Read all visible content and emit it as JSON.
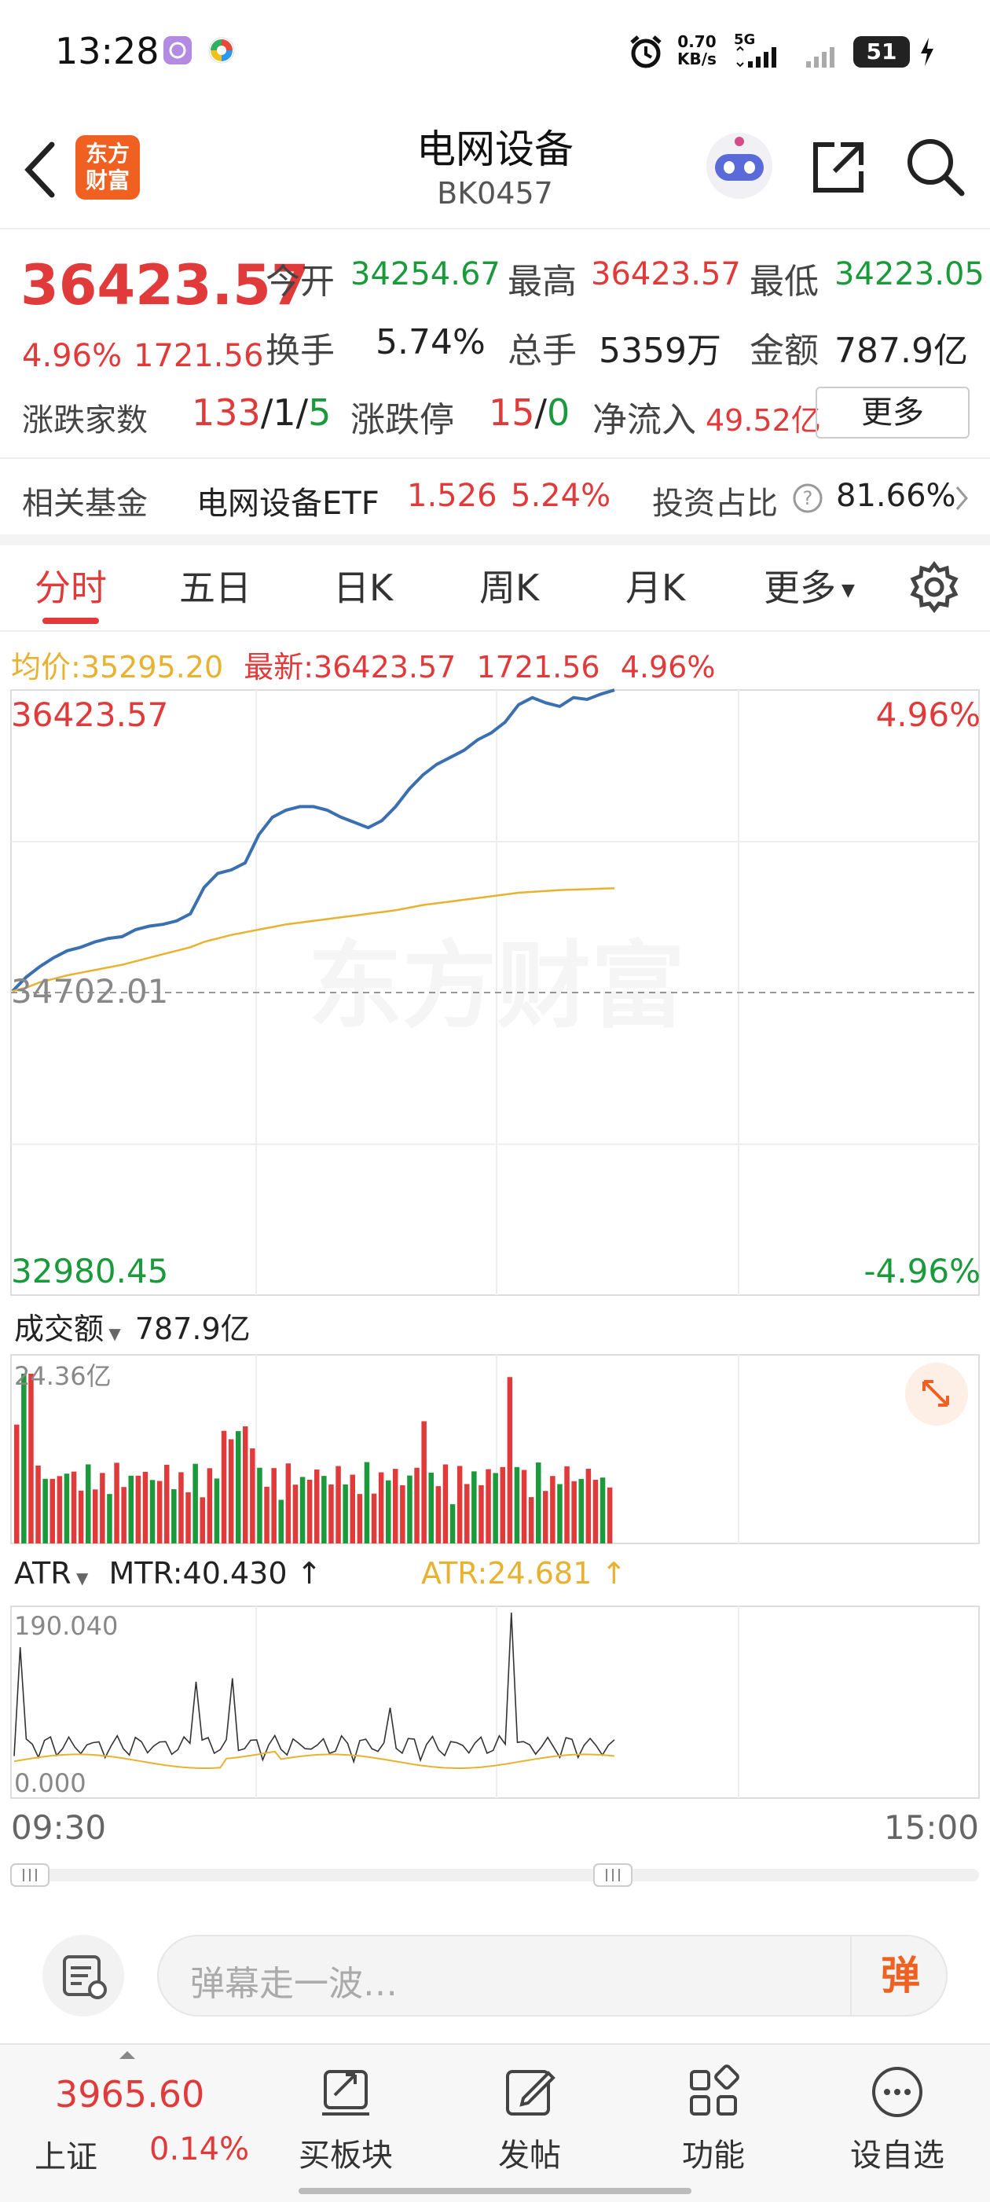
{
  "status_bar": {
    "time": "13:28",
    "net_speed_value": "0.70",
    "net_speed_unit": "KB/s",
    "network_type": "5G",
    "battery": "51"
  },
  "header": {
    "title": "电网设备",
    "code": "BK0457",
    "logo_text_line1": "东方",
    "logo_text_line2": "财富"
  },
  "quote": {
    "price": "36423.57",
    "change_pct": "4.96%",
    "change_amt": "1721.56",
    "open_label": "今开",
    "open_value": "34254.67",
    "high_label": "最高",
    "high_value": "36423.57",
    "low_label": "最低",
    "low_value": "34223.05",
    "turnover_label": "换手",
    "turnover_value": "5.74%",
    "volume_label": "总手",
    "volume_value": "5359万",
    "amount_label": "金额",
    "amount_value": "787.9亿",
    "breadth_label": "涨跌家数",
    "breadth_up": "133",
    "breadth_flat": "1",
    "breadth_down": "5",
    "limit_label": "涨跌停",
    "limit_up": "15",
    "limit_down": "0",
    "netflow_label": "净流入",
    "netflow_value": "49.52亿",
    "more_button": "更多"
  },
  "fund": {
    "label": "相关基金",
    "name": "电网设备ETF",
    "price": "1.526",
    "change": "5.24%",
    "ratio_label": "投资占比",
    "ratio_value": "81.66%"
  },
  "tabs": [
    "分时",
    "五日",
    "日K",
    "周K",
    "月K",
    "更多"
  ],
  "chart_info": {
    "avg_label": "均价:",
    "avg_value": "35295.20",
    "latest_label": "最新:",
    "latest_value": "36423.57",
    "latest_change": "1721.56",
    "latest_pct": "4.96%",
    "top_price": "36423.57",
    "top_pct": "4.96%",
    "mid_price": "34702.01",
    "bottom_price": "32980.45",
    "bottom_pct": "-4.96%",
    "watermark": "东方财富",
    "time_start": "09:30",
    "time_end": "15:00"
  },
  "volume_panel": {
    "selector_label": "成交额",
    "amount": "787.9亿",
    "max_label": "24.36亿"
  },
  "atr_panel": {
    "selector_label": "ATR",
    "mtr_text": "MTR:40.430",
    "atr_text": "ATR:24.681",
    "max_label": "190.040",
    "min_label": "0.000"
  },
  "comment_bar": {
    "placeholder": "弹幕走一波…",
    "danmu_button": "弹"
  },
  "bottom_nav": {
    "index_value": "3965.60",
    "index_name": "上证",
    "index_pct": "0.14%",
    "items": [
      "买板块",
      "发帖",
      "功能",
      "设自选"
    ]
  },
  "colors": {
    "up": "#e03a3a",
    "down": "#1a9a3a",
    "price_line": "#3a6fb0",
    "avg_line": "#e8b230",
    "accent": "#f06020"
  },
  "chart_data": {
    "type": "line",
    "x_range": [
      "09:30",
      "15:00"
    ],
    "ylim": [
      32980.45,
      36423.57
    ],
    "reference": 34702.01,
    "series": [
      {
        "values": [
          34710,
          34790,
          34850,
          34900,
          34940,
          34960,
          34990,
          35010,
          35020,
          35060,
          35080,
          35090,
          35110,
          35150,
          35300,
          35380,
          35400,
          35440,
          35600,
          35700,
          35740,
          35760,
          35760,
          35740,
          35700,
          35670,
          35640,
          35680,
          35760,
          35860,
          35940,
          36000,
          36040,
          36080,
          36140,
          36180,
          36240,
          36340,
          36380,
          36350,
          36330,
          36380,
          36370,
          36400,
          36423
        ]
      },
      {
        "values": [
          34710,
          34730,
          34760,
          34780,
          34800,
          34815,
          34830,
          34845,
          34860,
          34880,
          34900,
          34920,
          34940,
          34960,
          34990,
          35010,
          35030,
          35045,
          35060,
          35075,
          35090,
          35100,
          35110,
          35120,
          35130,
          35140,
          35150,
          35160,
          35170,
          35185,
          35200,
          35210,
          35220,
          35230,
          35240,
          35250,
          35260,
          35270,
          35275,
          35280,
          35285,
          35288,
          35290,
          35293,
          35295
        ]
      }
    ]
  }
}
